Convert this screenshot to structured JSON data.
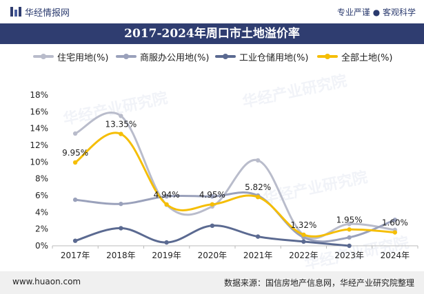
{
  "header": {
    "brand": "华经情报网",
    "slogan": "专业严谨 ● 客观科学"
  },
  "watermark": "华经产业研究院",
  "colors": {
    "title_bg": "#2f3d70",
    "residential": "#b9bccb",
    "commercial": "#9aa1bb",
    "industrial": "#5b6a91",
    "total": "#f5be05"
  },
  "chart_data": {
    "type": "line",
    "title": "2017-2024年周口市土地溢价率",
    "categories": [
      "2017年",
      "2018年",
      "2019年",
      "2020年",
      "2021年",
      "2022年",
      "2023年",
      "2024年"
    ],
    "ylim": [
      0,
      18
    ],
    "yticks": [
      "0%",
      "2%",
      "4%",
      "6%",
      "8%",
      "10%",
      "12%",
      "14%",
      "16%",
      "18%"
    ],
    "legend_position": "top",
    "grid": false,
    "series": [
      {
        "name": "住宅用地(%)",
        "values": [
          13.4,
          15.5,
          4.9,
          4.7,
          10.2,
          1.3,
          2.6,
          1.9
        ]
      },
      {
        "name": "商服办公用地(%)",
        "values": [
          5.5,
          5.0,
          5.9,
          5.9,
          6.0,
          1.0,
          1.0,
          3.1
        ]
      },
      {
        "name": "工业仓储用地(%)",
        "values": [
          0.6,
          2.1,
          0.4,
          2.4,
          1.1,
          0.5,
          0.0,
          null
        ]
      },
      {
        "name": "全部土地(%)",
        "values": [
          9.95,
          13.35,
          4.94,
          4.95,
          5.82,
          1.32,
          1.95,
          1.6
        ],
        "labels": [
          "9.95%",
          "13.35%",
          "4.94%",
          "4.95%",
          "5.82%",
          "1.32%",
          "1.95%",
          "1.60%"
        ]
      }
    ]
  },
  "footer": {
    "website": "www.huaon.com",
    "source": "数据来源：国信房地产信息网，华经产业研究院整理"
  }
}
